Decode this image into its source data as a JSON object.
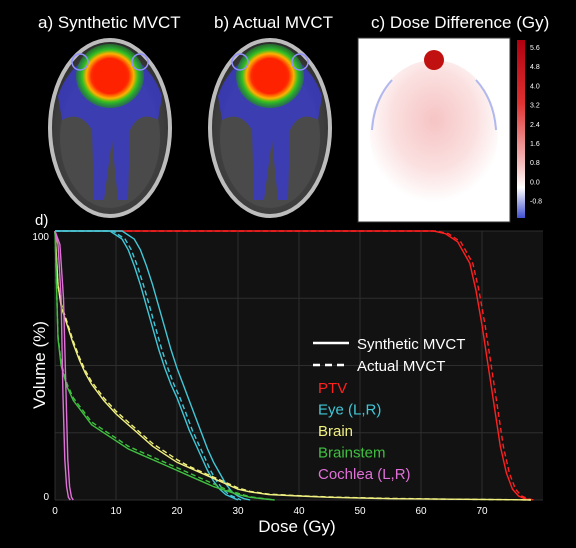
{
  "panels": {
    "a": "a) Synthetic MVCT",
    "b": "b) Actual MVCT",
    "c": "c) Dose Difference (Gy)",
    "d": "d)"
  },
  "colorbar": {
    "ticks": [
      "5.6",
      "4.8",
      "4.0",
      "3.2",
      "2.4",
      "1.6",
      "0.8",
      "0.0",
      "-0.8"
    ]
  },
  "chart_data": {
    "type": "line",
    "xlabel": "Dose (Gy)",
    "ylabel": "Volume (%)",
    "xlim": [
      0,
      80
    ],
    "ylim": [
      0,
      100
    ],
    "xticks": [
      0,
      10,
      20,
      30,
      40,
      50,
      60,
      70
    ],
    "yticks": [
      0,
      100
    ],
    "grid": true,
    "legend_position": "center-right",
    "line_styles": [
      {
        "label": "Synthetic MVCT",
        "dash": "solid"
      },
      {
        "label": "Actual MVCT",
        "dash": "dashed"
      }
    ],
    "series": [
      {
        "name": "PTV",
        "color": "#ff2020",
        "variants": [
          {
            "style": "solid",
            "points": [
              [
                0,
                100
              ],
              [
                62,
                100
              ],
              [
                64,
                99
              ],
              [
                66,
                96
              ],
              [
                68,
                88
              ],
              [
                69,
                78
              ],
              [
                70,
                65
              ],
              [
                71,
                50
              ],
              [
                72,
                35
              ],
              [
                73,
                20
              ],
              [
                74,
                10
              ],
              [
                75,
                4
              ],
              [
                76,
                1.5
              ],
              [
                77,
                0.5
              ],
              [
                78,
                0
              ]
            ]
          },
          {
            "style": "dashed",
            "points": [
              [
                0,
                100
              ],
              [
                62.5,
                100
              ],
              [
                64.5,
                99
              ],
              [
                66.5,
                96
              ],
              [
                68.5,
                88
              ],
              [
                69.5,
                78
              ],
              [
                70.5,
                65
              ],
              [
                71.5,
                50
              ],
              [
                72.5,
                35
              ],
              [
                73.5,
                20
              ],
              [
                74.5,
                10
              ],
              [
                75.5,
                4
              ],
              [
                76.5,
                1.5
              ],
              [
                77.5,
                0.5
              ],
              [
                78.5,
                0
              ]
            ]
          }
        ]
      },
      {
        "name": "Eye (L,R)",
        "color": "#40c8d8",
        "variants": [
          {
            "style": "solid",
            "points": [
              [
                0,
                100
              ],
              [
                9,
                100
              ],
              [
                11,
                97
              ],
              [
                12,
                93
              ],
              [
                13,
                87
              ],
              [
                14,
                80
              ],
              [
                15,
                72
              ],
              [
                16,
                64
              ],
              [
                17,
                56
              ],
              [
                18,
                49
              ],
              [
                19,
                43
              ],
              [
                20,
                38
              ],
              [
                21,
                32
              ],
              [
                22,
                26
              ],
              [
                23,
                21
              ],
              [
                24,
                16
              ],
              [
                25,
                11
              ],
              [
                26,
                7
              ],
              [
                27,
                4
              ],
              [
                28,
                2
              ],
              [
                29,
                1
              ],
              [
                30,
                0
              ]
            ]
          },
          {
            "style": "solid",
            "points": [
              [
                0,
                100
              ],
              [
                11,
                100
              ],
              [
                13,
                97
              ],
              [
                14,
                93
              ],
              [
                15,
                87
              ],
              [
                16,
                80
              ],
              [
                17,
                72
              ],
              [
                18,
                64
              ],
              [
                19,
                56
              ],
              [
                20,
                49
              ],
              [
                21,
                43
              ],
              [
                22,
                37
              ],
              [
                23,
                31
              ],
              [
                24,
                25
              ],
              [
                25,
                19
              ],
              [
                26,
                14
              ],
              [
                27,
                10
              ],
              [
                28,
                6
              ],
              [
                29,
                3
              ],
              [
                30,
                1.5
              ],
              [
                31,
                0.5
              ],
              [
                32,
                0
              ]
            ]
          },
          {
            "style": "dashed",
            "points": [
              [
                0,
                100
              ],
              [
                9.5,
                100
              ],
              [
                11.5,
                97
              ],
              [
                12.5,
                93
              ],
              [
                13.5,
                87
              ],
              [
                14.5,
                80
              ],
              [
                15.5,
                72
              ],
              [
                16.5,
                64
              ],
              [
                17.5,
                56
              ],
              [
                18.5,
                49
              ],
              [
                19.5,
                43
              ],
              [
                20.5,
                38
              ],
              [
                21.5,
                32
              ],
              [
                22.5,
                26
              ],
              [
                23.5,
                21
              ],
              [
                24.5,
                16
              ],
              [
                25.5,
                11
              ],
              [
                26.5,
                7
              ],
              [
                27.5,
                4
              ],
              [
                28.5,
                2
              ],
              [
                29.5,
                1
              ],
              [
                30.5,
                0
              ]
            ]
          }
        ]
      },
      {
        "name": "Brain",
        "color": "#f0f080",
        "variants": [
          {
            "style": "solid",
            "points": [
              [
                0,
                100
              ],
              [
                0.5,
                80
              ],
              [
                1,
                72
              ],
              [
                2,
                65
              ],
              [
                3,
                58
              ],
              [
                4,
                52
              ],
              [
                5,
                47
              ],
              [
                6,
                43
              ],
              [
                8,
                37
              ],
              [
                10,
                32
              ],
              [
                12,
                28
              ],
              [
                14,
                24
              ],
              [
                16,
                20
              ],
              [
                18,
                17
              ],
              [
                20,
                14
              ],
              [
                22,
                12
              ],
              [
                24,
                10
              ],
              [
                26,
                8
              ],
              [
                28,
                6
              ],
              [
                30,
                4
              ],
              [
                32,
                3
              ],
              [
                35,
                2
              ],
              [
                40,
                1.5
              ],
              [
                45,
                1
              ],
              [
                55,
                0.5
              ],
              [
                65,
                0.3
              ],
              [
                75,
                0.1
              ],
              [
                78,
                0
              ]
            ]
          },
          {
            "style": "dashed",
            "points": [
              [
                0,
                100
              ],
              [
                0.5,
                80
              ],
              [
                1,
                73
              ],
              [
                2,
                66
              ],
              [
                3,
                59
              ],
              [
                4,
                53
              ],
              [
                5,
                48
              ],
              [
                6,
                44
              ],
              [
                8,
                38
              ],
              [
                10,
                33
              ],
              [
                12,
                29
              ],
              [
                14,
                25
              ],
              [
                16,
                21
              ],
              [
                18,
                18
              ],
              [
                20,
                15
              ],
              [
                22,
                12.5
              ],
              [
                24,
                10.5
              ],
              [
                26,
                8.5
              ],
              [
                28,
                6.5
              ],
              [
                30,
                4.5
              ],
              [
                32,
                3.2
              ],
              [
                35,
                2.2
              ],
              [
                40,
                1.6
              ],
              [
                45,
                1.1
              ],
              [
                55,
                0.6
              ],
              [
                65,
                0.3
              ],
              [
                75,
                0.1
              ],
              [
                78,
                0
              ]
            ]
          }
        ]
      },
      {
        "name": "Brainstem",
        "color": "#40c040",
        "variants": [
          {
            "style": "solid",
            "points": [
              [
                0,
                100
              ],
              [
                0.5,
                60
              ],
              [
                1,
                50
              ],
              [
                2,
                42
              ],
              [
                3,
                37
              ],
              [
                4,
                34
              ],
              [
                5,
                31
              ],
              [
                6,
                28
              ],
              [
                8,
                25
              ],
              [
                10,
                22
              ],
              [
                12,
                19
              ],
              [
                14,
                17
              ],
              [
                16,
                15
              ],
              [
                18,
                13
              ],
              [
                20,
                11
              ],
              [
                22,
                9
              ],
              [
                24,
                7
              ],
              [
                26,
                5
              ],
              [
                28,
                3.5
              ],
              [
                30,
                2
              ],
              [
                32,
                1
              ],
              [
                34,
                0.5
              ],
              [
                36,
                0
              ]
            ]
          },
          {
            "style": "dashed",
            "points": [
              [
                0,
                100
              ],
              [
                0.5,
                61
              ],
              [
                1,
                51
              ],
              [
                2,
                43
              ],
              [
                3,
                38
              ],
              [
                4,
                35
              ],
              [
                5,
                32
              ],
              [
                6,
                29
              ],
              [
                8,
                26
              ],
              [
                10,
                23
              ],
              [
                12,
                20
              ],
              [
                14,
                18
              ],
              [
                16,
                16
              ],
              [
                18,
                14
              ],
              [
                20,
                12
              ],
              [
                22,
                10
              ],
              [
                24,
                8
              ],
              [
                26,
                6
              ],
              [
                28,
                4
              ],
              [
                30,
                2.5
              ],
              [
                32,
                1.2
              ],
              [
                34,
                0.6
              ],
              [
                36,
                0
              ]
            ]
          }
        ]
      },
      {
        "name": "Cochlea (L,R)",
        "color": "#e070d8",
        "variants": [
          {
            "style": "solid",
            "points": [
              [
                0,
                100
              ],
              [
                0.5,
                95
              ],
              [
                1,
                75
              ],
              [
                1.3,
                40
              ],
              [
                1.6,
                15
              ],
              [
                1.9,
                5
              ],
              [
                2.2,
                1
              ],
              [
                2.5,
                0
              ]
            ]
          },
          {
            "style": "solid",
            "points": [
              [
                0,
                100
              ],
              [
                0.8,
                95
              ],
              [
                1.4,
                75
              ],
              [
                1.8,
                40
              ],
              [
                2.1,
                15
              ],
              [
                2.4,
                5
              ],
              [
                2.7,
                1
              ],
              [
                3,
                0
              ]
            ]
          }
        ]
      }
    ]
  },
  "axis": {
    "xlabel": "Dose (Gy)",
    "ylabel": "Volume (%)",
    "xtick_labels": [
      "0",
      "10",
      "20",
      "30",
      "40",
      "50",
      "60",
      "70"
    ],
    "ytick_top": "100",
    "ytick_bottom": "0"
  },
  "legend": {
    "style_solid": "Synthetic MVCT",
    "style_dashed": "Actual MVCT",
    "items": [
      {
        "label": "PTV",
        "color": "#ff2020"
      },
      {
        "label": "Eye (L,R)",
        "color": "#40c8d8"
      },
      {
        "label": "Brain",
        "color": "#f0f080"
      },
      {
        "label": "Brainstem",
        "color": "#40c040"
      },
      {
        "label": "Cochlea (L,R)",
        "color": "#e070d8"
      }
    ]
  }
}
